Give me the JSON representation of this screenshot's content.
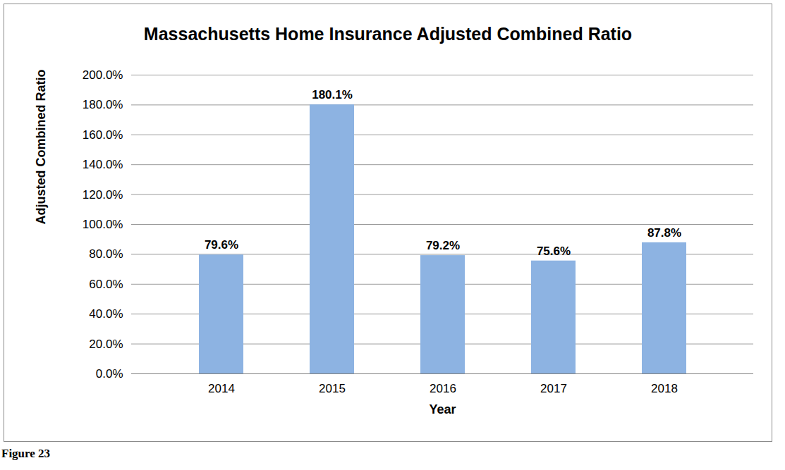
{
  "chart_data": {
    "type": "bar",
    "title": "Massachusetts Home Insurance Adjusted Combined Ratio",
    "x_label": "Year",
    "y_label": "Adjusted Combined Ratio",
    "caption": "Figure 23",
    "categories": [
      "2014",
      "2015",
      "2016",
      "2017",
      "2018"
    ],
    "values": [
      79.6,
      180.1,
      79.2,
      75.6,
      87.8
    ],
    "value_labels": [
      "79.6%",
      "180.1%",
      "79.2%",
      "75.6%",
      "87.8%"
    ],
    "color": "#8db3e2",
    "ylim": [
      0,
      200
    ],
    "yticks": [
      {
        "value": 0,
        "label": "0.0%"
      },
      {
        "value": 20,
        "label": "20.0%"
      },
      {
        "value": 40,
        "label": "40.0%"
      },
      {
        "value": 60,
        "label": "60.0%"
      },
      {
        "value": 80,
        "label": "80.0%"
      },
      {
        "value": 100,
        "label": "100.0%"
      },
      {
        "value": 120,
        "label": "120.0%"
      },
      {
        "value": 140,
        "label": "140.0%"
      },
      {
        "value": 160,
        "label": "160.0%"
      },
      {
        "value": 180,
        "label": "180.0%"
      },
      {
        "value": 200,
        "label": "200.0%"
      }
    ],
    "grid": true,
    "data_labels": true
  }
}
